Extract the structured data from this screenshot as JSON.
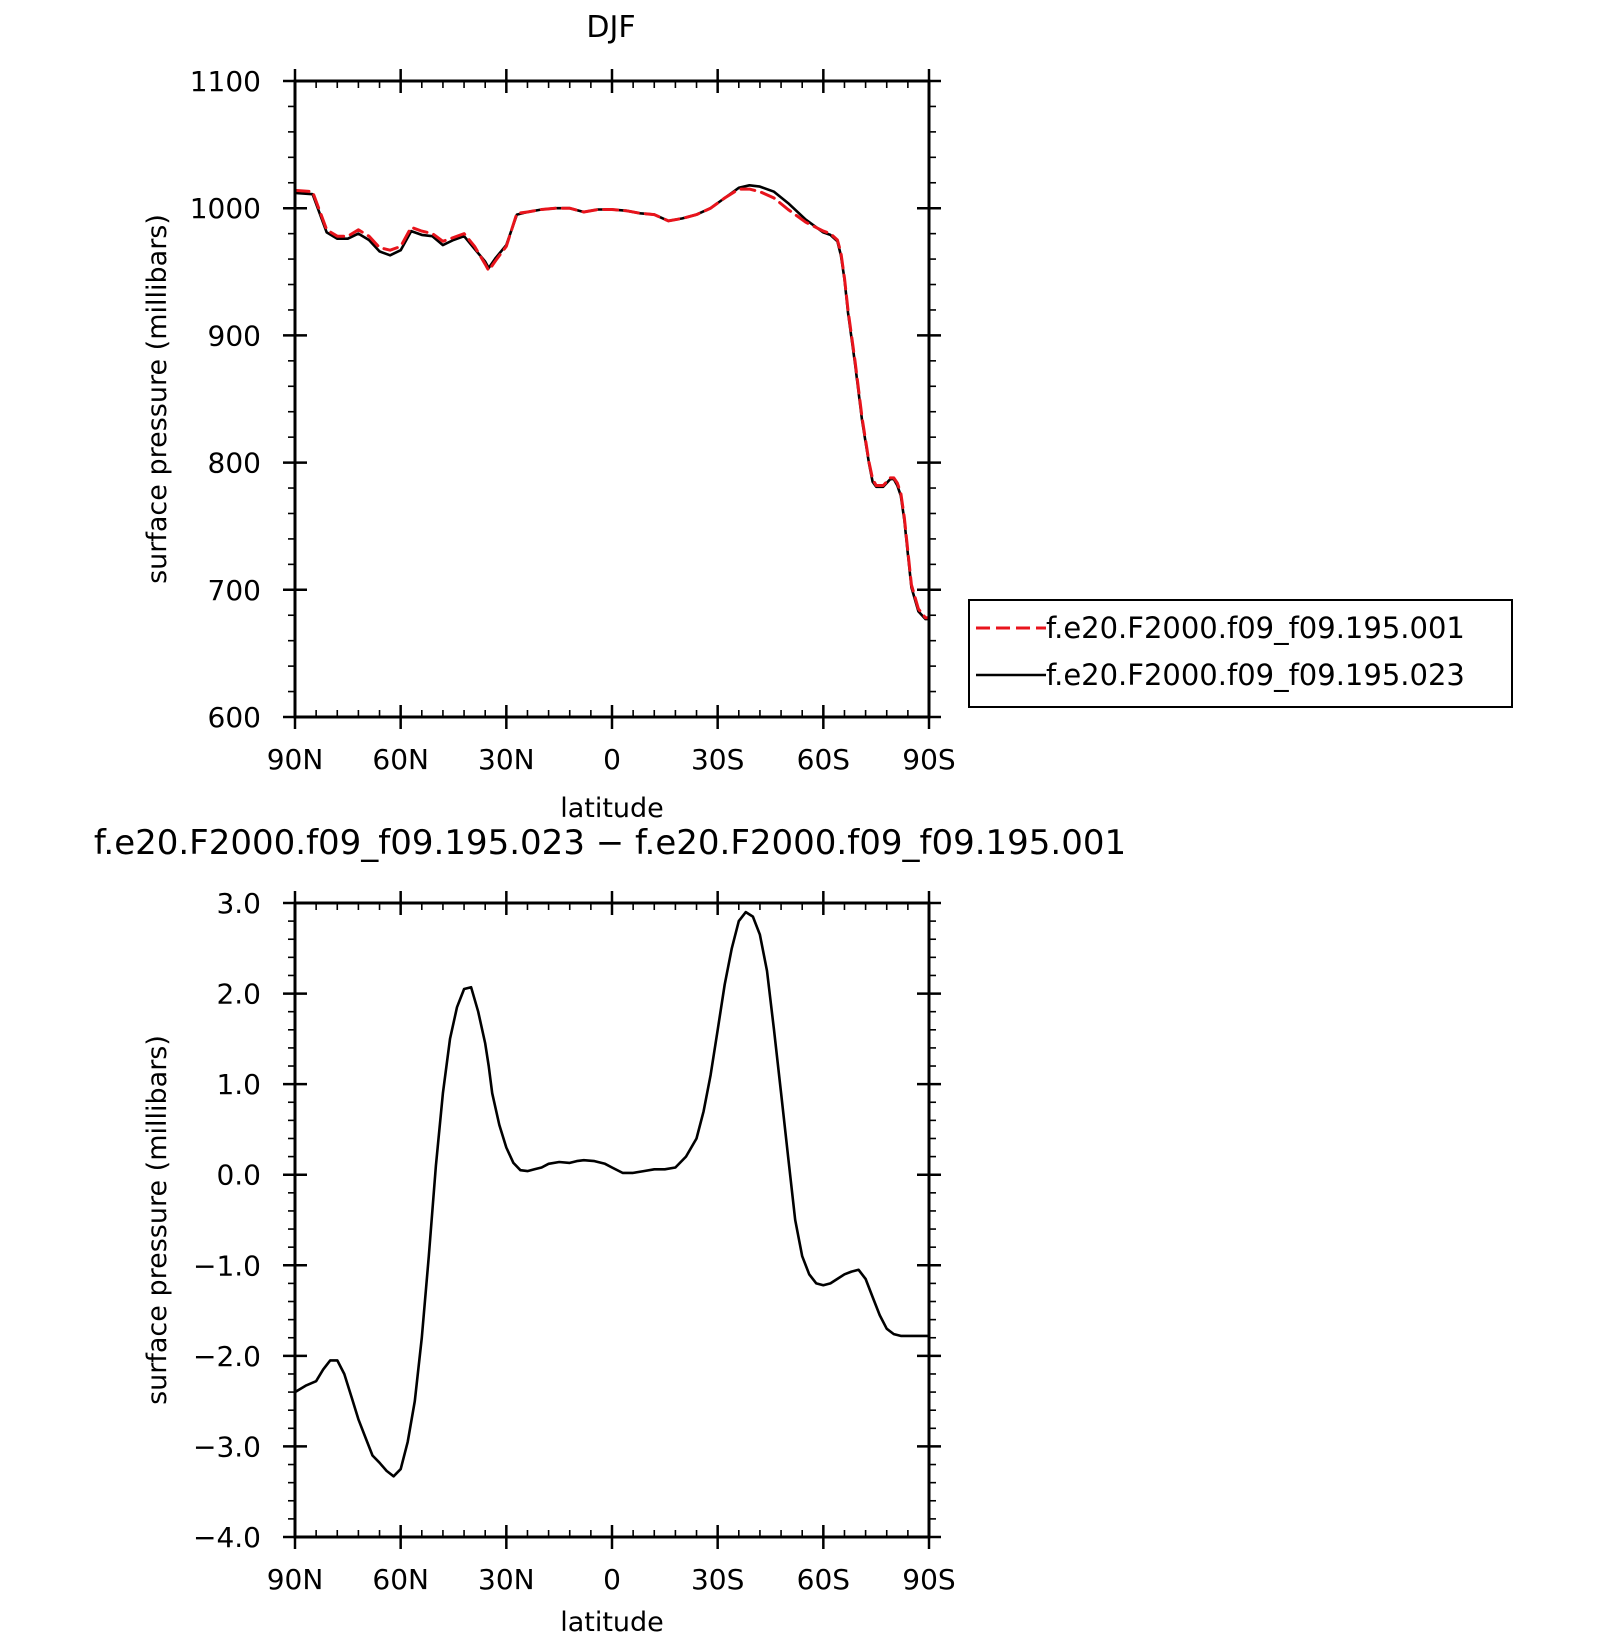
{
  "chart_data": [
    {
      "type": "line",
      "title": "DJF",
      "xlabel": "latitude",
      "ylabel": "surface pressure (millibars)",
      "xlim": [
        90,
        -90
      ],
      "ylim": [
        600,
        1100
      ],
      "x_ticks": [
        {
          "value": 90,
          "label": "90N"
        },
        {
          "value": 60,
          "label": "60N"
        },
        {
          "value": 30,
          "label": "30N"
        },
        {
          "value": 0,
          "label": "0"
        },
        {
          "value": -30,
          "label": "30S"
        },
        {
          "value": -60,
          "label": "60S"
        },
        {
          "value": -90,
          "label": "90S"
        }
      ],
      "y_ticks": [
        {
          "value": 600,
          "label": "600"
        },
        {
          "value": 700,
          "label": "700"
        },
        {
          "value": 800,
          "label": "800"
        },
        {
          "value": 900,
          "label": "900"
        },
        {
          "value": 1000,
          "label": "1000"
        },
        {
          "value": 1100,
          "label": "1100"
        }
      ],
      "legend_position": "right",
      "series": [
        {
          "name": "f.e20.F2000.f09_f09.195.001",
          "color": "#e8141c",
          "dash": "dashed",
          "x": [
            90,
            85,
            81,
            78,
            75,
            72,
            69,
            66,
            63,
            60,
            57,
            54,
            51,
            48,
            45,
            42,
            39,
            36,
            35,
            33,
            30,
            27,
            24,
            20,
            16,
            12,
            8,
            4,
            0,
            -4,
            -8,
            -12,
            -16,
            -20,
            -24,
            -28,
            -32,
            -36,
            -39,
            -42,
            -46,
            -50,
            -55,
            -60,
            -62,
            -64,
            -65,
            -66,
            -67,
            -69,
            -71,
            -73,
            -74,
            -75,
            -77,
            -79,
            -80,
            -81,
            -82,
            -83,
            -84,
            -85,
            -87,
            -89,
            -90
          ],
          "y": [
            1014,
            1013,
            983,
            978,
            978,
            983,
            978,
            969,
            967,
            970,
            985,
            982,
            980,
            974,
            977,
            980,
            970,
            956,
            951,
            959,
            970,
            996,
            997,
            999,
            1000,
            1000,
            997,
            999,
            999,
            998,
            996,
            995,
            990,
            992,
            995,
            1000,
            1008,
            1015,
            1015,
            1013,
            1008,
            999,
            989,
            982,
            980,
            975,
            965,
            945,
            920,
            880,
            835,
            800,
            787,
            782,
            782,
            788,
            788,
            784,
            776,
            757,
            730,
            704,
            685,
            678,
            678
          ]
        },
        {
          "name": "f.e20.F2000.f09_f09.195.023",
          "color": "#000000",
          "dash": "solid",
          "x": [
            90,
            85,
            81,
            78,
            75,
            72,
            69,
            66,
            63,
            60,
            57,
            54,
            51,
            48,
            45,
            42,
            39,
            36,
            35,
            33,
            30,
            27,
            24,
            20,
            16,
            12,
            8,
            4,
            0,
            -4,
            -8,
            -12,
            -16,
            -20,
            -24,
            -28,
            -32,
            -36,
            -39,
            -42,
            -46,
            -50,
            -55,
            -60,
            -62,
            -64,
            -65,
            -66,
            -67,
            -69,
            -71,
            -73,
            -74,
            -75,
            -77,
            -79,
            -80,
            -81,
            -82,
            -83,
            -84,
            -85,
            -87,
            -89,
            -90
          ],
          "y": [
            1012,
            1011,
            981,
            976,
            976,
            980,
            975,
            966,
            963,
            967,
            982,
            979,
            978,
            971,
            975,
            978,
            968,
            958,
            953,
            961,
            971,
            995,
            997,
            999,
            1000,
            1000,
            997,
            999,
            999,
            998,
            996,
            995,
            990,
            992,
            995,
            1000,
            1008,
            1016,
            1018,
            1017,
            1013,
            1004,
            991,
            981,
            979,
            974,
            963,
            944,
            918,
            878,
            833,
            799,
            785,
            781,
            781,
            787,
            787,
            782,
            774,
            755,
            728,
            702,
            683,
            677,
            677
          ]
        }
      ]
    },
    {
      "type": "line",
      "title": "f.e20.F2000.f09_f09.195.023 − f.e20.F2000.f09_f09.195.001",
      "xlabel": "latitude",
      "ylabel": "surface pressure (millibars)",
      "xlim": [
        90,
        -90
      ],
      "ylim": [
        -4.0,
        3.0
      ],
      "x_ticks": [
        {
          "value": 90,
          "label": "90N"
        },
        {
          "value": 60,
          "label": "60N"
        },
        {
          "value": 30,
          "label": "30N"
        },
        {
          "value": 0,
          "label": "0"
        },
        {
          "value": -30,
          "label": "30S"
        },
        {
          "value": -60,
          "label": "60S"
        },
        {
          "value": -90,
          "label": "90S"
        }
      ],
      "y_ticks": [
        {
          "value": -4.0,
          "label": "−4.0"
        },
        {
          "value": -3.0,
          "label": "−3.0"
        },
        {
          "value": -2.0,
          "label": "−2.0"
        },
        {
          "value": -1.0,
          "label": "−1.0"
        },
        {
          "value": 0.0,
          "label": "0.0"
        },
        {
          "value": 1.0,
          "label": "1.0"
        },
        {
          "value": 2.0,
          "label": "2.0"
        },
        {
          "value": 3.0,
          "label": "3.0"
        }
      ],
      "series": [
        {
          "color": "#000000",
          "dash": "solid",
          "x": [
            90,
            87,
            84,
            82,
            80,
            78,
            76,
            74,
            72,
            70,
            68,
            66,
            64,
            62,
            60,
            58,
            56,
            54,
            52,
            50,
            48,
            46,
            44,
            42,
            40,
            38,
            36,
            35,
            34,
            32,
            30,
            28,
            26,
            24,
            22,
            20,
            18,
            15,
            12,
            10,
            8,
            5,
            2,
            0,
            -3,
            -6,
            -9,
            -12,
            -15,
            -18,
            -21,
            -24,
            -26,
            -28,
            -30,
            -32,
            -34,
            -36,
            -38,
            -40,
            -42,
            -44,
            -46,
            -48,
            -50,
            -52,
            -54,
            -56,
            -58,
            -60,
            -62,
            -64,
            -66,
            -68,
            -70,
            -72,
            -74,
            -76,
            -78,
            -80,
            -82,
            -84,
            -86,
            -88,
            -90
          ],
          "y": [
            -2.4,
            -2.33,
            -2.28,
            -2.15,
            -2.05,
            -2.05,
            -2.2,
            -2.45,
            -2.7,
            -2.9,
            -3.1,
            -3.18,
            -3.27,
            -3.33,
            -3.25,
            -2.95,
            -2.5,
            -1.8,
            -0.9,
            0.1,
            0.9,
            1.5,
            1.85,
            2.05,
            2.07,
            1.8,
            1.45,
            1.2,
            0.9,
            0.55,
            0.3,
            0.13,
            0.05,
            0.04,
            0.06,
            0.08,
            0.12,
            0.14,
            0.13,
            0.15,
            0.16,
            0.15,
            0.12,
            0.08,
            0.02,
            0.02,
            0.04,
            0.06,
            0.06,
            0.08,
            0.2,
            0.4,
            0.7,
            1.1,
            1.6,
            2.1,
            2.5,
            2.8,
            2.9,
            2.85,
            2.65,
            2.25,
            1.6,
            0.9,
            0.2,
            -0.5,
            -0.9,
            -1.1,
            -1.2,
            -1.22,
            -1.2,
            -1.15,
            -1.1,
            -1.07,
            -1.05,
            -1.15,
            -1.35,
            -1.55,
            -1.7,
            -1.76,
            -1.78,
            -1.78,
            -1.78,
            -1.78,
            -1.78
          ]
        }
      ]
    }
  ]
}
